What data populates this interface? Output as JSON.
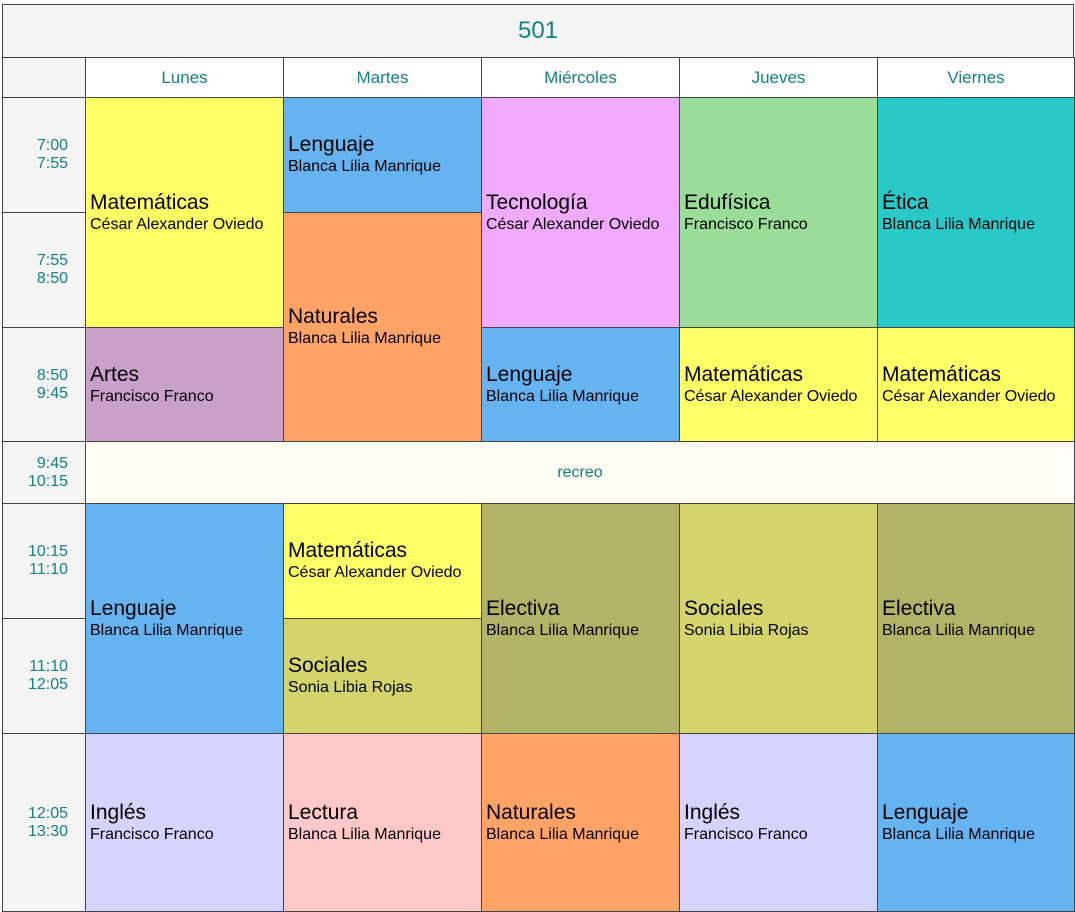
{
  "timetable": {
    "title": "501",
    "days": [
      "Lunes",
      "Martes",
      "Miércoles",
      "Jueves",
      "Viernes"
    ],
    "periods": [
      {
        "start": "7:00",
        "end": "7:55"
      },
      {
        "start": "7:55",
        "end": "8:50"
      },
      {
        "start": "8:50",
        "end": "9:45"
      },
      {
        "start": "9:45",
        "end": "10:15"
      },
      {
        "start": "10:15",
        "end": "11:10"
      },
      {
        "start": "11:10",
        "end": "12:05"
      },
      {
        "start": "12:05",
        "end": "13:30"
      }
    ],
    "break_label": "recreo",
    "colors": {
      "matematicas": "#ffff66",
      "lenguaje": "#66b3f2",
      "naturales": "#ffa366",
      "tecnologia": "#f0aaff",
      "edufisica": "#99dd99",
      "etica": "#29c9c9",
      "artes": "#c9a0c9",
      "electiva": "#b3b366",
      "sociales": "#d4d46a",
      "ingles": "#d4d4ff",
      "lectura": "#ffc8c8",
      "break": "#fefdf2"
    },
    "lessons": [
      {
        "day": 0,
        "from": 0,
        "span": 2,
        "subject": "Matemáticas",
        "teacher": "César Alexander Oviedo",
        "color": "#ffff66"
      },
      {
        "day": 0,
        "from": 2,
        "span": 1,
        "subject": "Artes",
        "teacher": "Francisco Franco",
        "color": "#c9a0c9"
      },
      {
        "day": 0,
        "from": 4,
        "span": 2,
        "subject": "Lenguaje",
        "teacher": "Blanca Lilia Manrique",
        "color": "#66b3f2"
      },
      {
        "day": 0,
        "from": 6,
        "span": 1,
        "subject": "Inglés",
        "teacher": "Francisco Franco",
        "color": "#d4d4ff"
      },
      {
        "day": 1,
        "from": 0,
        "span": 1,
        "subject": "Lenguaje",
        "teacher": "Blanca Lilia Manrique",
        "color": "#66b3f2"
      },
      {
        "day": 1,
        "from": 1,
        "span": 2,
        "subject": "Naturales",
        "teacher": "Blanca Lilia Manrique",
        "color": "#ffa366"
      },
      {
        "day": 1,
        "from": 4,
        "span": 1,
        "subject": "Matemáticas",
        "teacher": "César Alexander Oviedo",
        "color": "#ffff66"
      },
      {
        "day": 1,
        "from": 5,
        "span": 1,
        "subject": "Sociales",
        "teacher": "Sonia Libia Rojas",
        "color": "#d4d46a"
      },
      {
        "day": 1,
        "from": 6,
        "span": 1,
        "subject": "Lectura",
        "teacher": "Blanca Lilia Manrique",
        "color": "#ffc8c8"
      },
      {
        "day": 2,
        "from": 0,
        "span": 2,
        "subject": "Tecnología",
        "teacher": "César Alexander Oviedo",
        "color": "#f0aaff"
      },
      {
        "day": 2,
        "from": 2,
        "span": 1,
        "subject": "Lenguaje",
        "teacher": "Blanca Lilia Manrique",
        "color": "#66b3f2"
      },
      {
        "day": 2,
        "from": 4,
        "span": 2,
        "subject": "Electiva",
        "teacher": "Blanca Lilia Manrique",
        "color": "#b3b366"
      },
      {
        "day": 2,
        "from": 6,
        "span": 1,
        "subject": "Naturales",
        "teacher": "Blanca Lilia Manrique",
        "color": "#ffa366"
      },
      {
        "day": 3,
        "from": 0,
        "span": 2,
        "subject": "Edufísica",
        "teacher": "Francisco Franco",
        "color": "#99dd99"
      },
      {
        "day": 3,
        "from": 2,
        "span": 1,
        "subject": "Matemáticas",
        "teacher": "César Alexander Oviedo",
        "color": "#ffff66"
      },
      {
        "day": 3,
        "from": 4,
        "span": 2,
        "subject": "Sociales",
        "teacher": "Sonia Libia Rojas",
        "color": "#d4d46a"
      },
      {
        "day": 3,
        "from": 6,
        "span": 1,
        "subject": "Inglés",
        "teacher": "Francisco Franco",
        "color": "#d4d4ff"
      },
      {
        "day": 4,
        "from": 0,
        "span": 2,
        "subject": "Ética",
        "teacher": "Blanca Lilia Manrique",
        "color": "#29c9c9"
      },
      {
        "day": 4,
        "from": 2,
        "span": 1,
        "subject": "Matemáticas",
        "teacher": "César Alexander Oviedo",
        "color": "#ffff66"
      },
      {
        "day": 4,
        "from": 4,
        "span": 2,
        "subject": "Electiva",
        "teacher": "Blanca Lilia Manrique",
        "color": "#b3b366"
      },
      {
        "day": 4,
        "from": 6,
        "span": 1,
        "subject": "Lenguaje",
        "teacher": "Blanca Lilia Manrique",
        "color": "#66b3f2"
      }
    ]
  }
}
